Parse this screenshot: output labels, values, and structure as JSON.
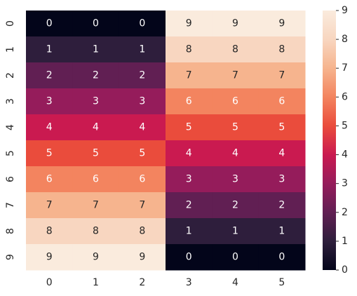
{
  "chart_data": {
    "type": "heatmap",
    "title": "",
    "xlabel": "",
    "ylabel": "",
    "x_labels": [
      "0",
      "1",
      "2",
      "3",
      "4",
      "5"
    ],
    "y_labels": [
      "0",
      "1",
      "2",
      "3",
      "4",
      "5",
      "6",
      "7",
      "8",
      "9"
    ],
    "values": [
      [
        0,
        0,
        0,
        9,
        9,
        9
      ],
      [
        1,
        1,
        1,
        8,
        8,
        8
      ],
      [
        2,
        2,
        2,
        7,
        7,
        7
      ],
      [
        3,
        3,
        3,
        6,
        6,
        6
      ],
      [
        4,
        4,
        4,
        5,
        5,
        5
      ],
      [
        5,
        5,
        5,
        4,
        4,
        4
      ],
      [
        6,
        6,
        6,
        3,
        3,
        3
      ],
      [
        7,
        7,
        7,
        2,
        2,
        2
      ],
      [
        8,
        8,
        8,
        1,
        1,
        1
      ],
      [
        9,
        9,
        9,
        0,
        0,
        0
      ]
    ],
    "annotated": true,
    "colormap": "rocket",
    "vmin": 0,
    "vmax": 9,
    "colorbar_ticks": [
      "0",
      "1",
      "2",
      "3",
      "4",
      "5",
      "6",
      "7",
      "8",
      "9"
    ],
    "colors": [
      "#03051a",
      "#2e1e3c",
      "#611f53",
      "#951c5b",
      "#ca1a50",
      "#ea4c3c",
      "#f3845f",
      "#f6b48e",
      "#f8d6c0",
      "#faebdd"
    ]
  }
}
